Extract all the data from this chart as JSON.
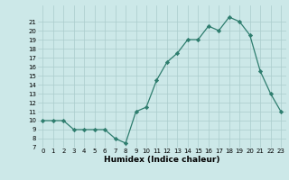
{
  "x": [
    0,
    1,
    2,
    3,
    4,
    5,
    6,
    7,
    8,
    9,
    10,
    11,
    12,
    13,
    14,
    15,
    16,
    17,
    18,
    19,
    20,
    21,
    22,
    23
  ],
  "y": [
    10,
    10,
    10,
    9,
    9,
    9,
    9,
    8,
    7.5,
    11,
    11.5,
    14.5,
    16.5,
    17.5,
    19,
    19,
    20.5,
    20,
    21.5,
    21,
    19.5,
    15.5,
    13,
    11
  ],
  "xlabel": "Humidex (Indice chaleur)",
  "ylim": [
    7,
    22
  ],
  "xlim": [
    -0.5,
    23.5
  ],
  "yticks": [
    7,
    8,
    9,
    10,
    11,
    12,
    13,
    14,
    15,
    16,
    17,
    18,
    19,
    20,
    21
  ],
  "xticks": [
    0,
    1,
    2,
    3,
    4,
    5,
    6,
    7,
    8,
    9,
    10,
    11,
    12,
    13,
    14,
    15,
    16,
    17,
    18,
    19,
    20,
    21,
    22,
    23
  ],
  "line_color": "#2e7d6e",
  "marker": "D",
  "marker_size": 2.2,
  "bg_color": "#cce8e8",
  "grid_color": "#aacccc",
  "tick_fontsize": 5.0,
  "xlabel_fontsize": 6.5
}
